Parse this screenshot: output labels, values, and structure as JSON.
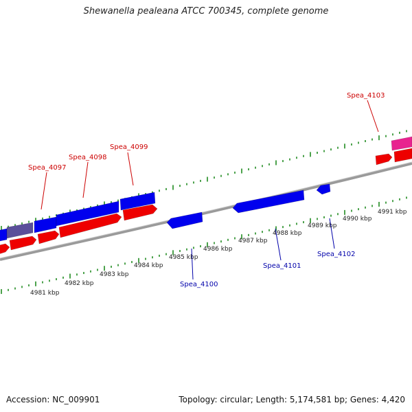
{
  "title": "Shewanella pealeana ATCC 700345, complete genome",
  "footer": {
    "accession": "Accession: NC_009901",
    "stats": "Topology: circular; Length: 5,174,581 bp; Genes: 4,420"
  },
  "colors": {
    "forward_gene": "#ee0000",
    "reverse_gene": "#0000ee",
    "highlight_gene": "#5a4f9a",
    "pink_gene": "#e8238f",
    "tick": "#1f8a1f",
    "backbone": "#888888",
    "forward_label": "#cc0000",
    "reverse_label": "#0000aa"
  },
  "forward_labels": [
    "Spea_4097",
    "Spea_4098",
    "Spea_4099",
    "Spea_4103"
  ],
  "reverse_labels": [
    "Spea_4100",
    "Spea_4101",
    "Spea_4102"
  ],
  "kbp_labels": [
    "4981 kbp",
    "4982 kbp",
    "4983 kbp",
    "4984 kbp",
    "4985 kbp",
    "4986 kbp",
    "4987 kbp",
    "4988 kbp",
    "4989 kbp",
    "4990 kbp",
    "4991 kbp"
  ]
}
